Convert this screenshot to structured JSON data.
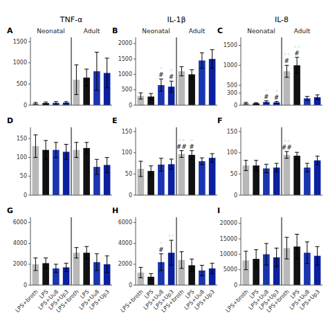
{
  "chart_data": [
    {
      "type": "bar",
      "label": "A",
      "title": "TNF-α",
      "categories": [
        null,
        null,
        null,
        null,
        null,
        null,
        null,
        null
      ],
      "values": [
        45,
        50,
        55,
        60,
        600,
        650,
        800,
        760
      ],
      "errors": [
        20,
        25,
        30,
        25,
        350,
        200,
        450,
        350
      ],
      "colors": [
        "#b8b8b8",
        "#111111",
        "#1a35b0",
        "#0a20a0",
        "#b8b8b8",
        "#111111",
        "#1a35b0",
        "#0a20a0"
      ],
      "ylim": [
        0,
        1600
      ],
      "yticks": [
        0,
        500,
        1000,
        1500
      ],
      "tick_labels": "y",
      "annotations": [
        {
          "text": "Neonatal"
        },
        {
          "text": "Adult"
        }
      ]
    },
    {
      "type": "bar",
      "label": "B",
      "title": "IL-1β",
      "categories": [
        null,
        null,
        null,
        null,
        null,
        null,
        null,
        null
      ],
      "values": [
        300,
        280,
        650,
        600,
        1100,
        1000,
        1450,
        1500
      ],
      "errors": [
        100,
        100,
        200,
        180,
        150,
        150,
        250,
        300
      ],
      "colors": [
        "#b8b8b8",
        "#111111",
        "#1a35b0",
        "#0a20a0",
        "#b8b8b8",
        "#111111",
        "#1a35b0",
        "#0a20a0"
      ],
      "ylim": [
        0,
        2200
      ],
      "yticks": [
        0,
        500,
        1000,
        1500,
        2000
      ],
      "tick_labels": "y",
      "annotations": [
        {
          "text": "Neonatal"
        },
        {
          "text": "Adult"
        },
        {
          "text": "#",
          "category": 2,
          "color": "black"
        },
        {
          "text": "◦",
          "category": 2,
          "color": "gray"
        },
        {
          "text": "#",
          "category": 3,
          "color": "black"
        },
        {
          "text": "◦",
          "category": 3,
          "color": "gray"
        }
      ]
    },
    {
      "type": "bar",
      "label": "C",
      "title": "IL-8",
      "categories": [
        null,
        null,
        null,
        null,
        null,
        null,
        null,
        null
      ],
      "values": [
        50,
        45,
        80,
        70,
        850,
        1000,
        170,
        200
      ],
      "errors": [
        20,
        15,
        30,
        25,
        150,
        200,
        50,
        60
      ],
      "colors": [
        "#b8b8b8",
        "#111111",
        "#1a35b0",
        "#0a20a0",
        "#b8b8b8",
        "#111111",
        "#1a35b0",
        "#0a20a0"
      ],
      "ylim": [
        0,
        1700
      ],
      "yticks": [
        0,
        300,
        500,
        1000,
        1500
      ],
      "tick_labels": "y",
      "annotations": [
        {
          "text": "Neonatal"
        },
        {
          "text": "Adult"
        },
        {
          "text": "#",
          "category": 2,
          "color": "black"
        },
        {
          "text": "◦",
          "category": 2,
          "color": "gray"
        },
        {
          "text": "#",
          "category": 3,
          "color": "black"
        },
        {
          "text": "◦",
          "category": 3,
          "color": "gray"
        },
        {
          "text": "#",
          "category": 4,
          "color": "black"
        },
        {
          "text": "◦◦",
          "category": 4,
          "color": "gray"
        },
        {
          "text": "#",
          "category": 5,
          "color": "black"
        },
        {
          "text": "◦◦",
          "category": 5,
          "color": "gray"
        }
      ]
    },
    {
      "type": "bar",
      "label": "D",
      "categories": [
        null,
        null,
        null,
        null,
        null,
        null,
        null,
        null
      ],
      "values": [
        130,
        120,
        120,
        115,
        120,
        125,
        75,
        80
      ],
      "errors": [
        30,
        25,
        20,
        20,
        20,
        15,
        20,
        20
      ],
      "colors": [
        "#b8b8b8",
        "#111111",
        "#1a35b0",
        "#0a20a0",
        "#b8b8b8",
        "#111111",
        "#1a35b0",
        "#0a20a0"
      ],
      "ylim": [
        0,
        180
      ],
      "yticks": [
        0,
        50,
        100,
        150
      ],
      "tick_labels": "y"
    },
    {
      "type": "bar",
      "label": "E",
      "categories": [
        null,
        null,
        null,
        null,
        null,
        null,
        null,
        null
      ],
      "values": [
        62,
        57,
        72,
        73,
        97,
        95,
        80,
        88
      ],
      "errors": [
        18,
        12,
        15,
        12,
        8,
        10,
        8,
        10
      ],
      "colors": [
        "#b8b8b8",
        "#111111",
        "#1a35b0",
        "#0a20a0",
        "#b8b8b8",
        "#111111",
        "#1a35b0",
        "#0a20a0"
      ],
      "ylim": [
        0,
        160
      ],
      "yticks": [
        0,
        50,
        100,
        150
      ],
      "tick_labels": "y",
      "annotations": [
        {
          "text": "##",
          "category": 4,
          "color": "black"
        },
        {
          "text": "◦◦",
          "category": 4,
          "color": "gray"
        },
        {
          "text": "#",
          "category": 5,
          "color": "black"
        },
        {
          "text": "◦",
          "category": 5,
          "color": "gray"
        }
      ]
    },
    {
      "type": "bar",
      "label": "F",
      "categories": [
        null,
        null,
        null,
        null,
        null,
        null,
        null,
        null
      ],
      "values": [
        70,
        70,
        63,
        65,
        95,
        93,
        65,
        82
      ],
      "errors": [
        12,
        12,
        10,
        10,
        8,
        8,
        10,
        10
      ],
      "colors": [
        "#b8b8b8",
        "#111111",
        "#1a35b0",
        "#0a20a0",
        "#b8b8b8",
        "#111111",
        "#1a35b0",
        "#0a20a0"
      ],
      "ylim": [
        0,
        160
      ],
      "yticks": [
        0,
        50,
        100,
        150
      ],
      "tick_labels": "y",
      "annotations": [
        {
          "text": "##",
          "category": 4,
          "color": "black"
        },
        {
          "text": "◦◦",
          "category": 4,
          "color": "gray"
        }
      ]
    },
    {
      "type": "bar",
      "label": "G",
      "categories": [
        "LPS+broth",
        "LPS",
        "LPS+Uu8",
        "LPS+Up3",
        "LPS+broth",
        "LPS",
        "LPS+Uu8",
        "LPS+Up3"
      ],
      "values": [
        2000,
        2100,
        1600,
        1700,
        3100,
        3100,
        2200,
        2000
      ],
      "errors": [
        600,
        500,
        400,
        400,
        500,
        600,
        800,
        800
      ],
      "colors": [
        "#b8b8b8",
        "#111111",
        "#1a35b0",
        "#0a20a0",
        "#b8b8b8",
        "#111111",
        "#1a35b0",
        "#0a20a0"
      ],
      "ylim": [
        0,
        6500
      ],
      "yticks": [
        0,
        2000,
        4000,
        6000
      ]
    },
    {
      "type": "bar",
      "label": "H",
      "categories": [
        "LPS+broth",
        "LPS",
        "LPS+Uu8",
        "LPS+Up3",
        "LPS+broth",
        "LPS",
        "LPS+Uu8",
        "LPS+Up3"
      ],
      "values": [
        1200,
        800,
        2200,
        3100,
        2400,
        1900,
        1400,
        1600
      ],
      "errors": [
        500,
        300,
        800,
        1200,
        800,
        600,
        500,
        500
      ],
      "colors": [
        "#b8b8b8",
        "#111111",
        "#1a35b0",
        "#0a20a0",
        "#b8b8b8",
        "#111111",
        "#1a35b0",
        "#0a20a0"
      ],
      "ylim": [
        0,
        6500
      ],
      "yticks": [
        0,
        2000,
        4000,
        6000
      ],
      "annotations": [
        {
          "text": "#",
          "category": 2,
          "color": "black"
        },
        {
          "text": "◦",
          "category": 2,
          "color": "gray"
        },
        {
          "text": "◦◦",
          "category": 3,
          "color": "gray"
        }
      ]
    },
    {
      "type": "bar",
      "label": "I",
      "categories": [
        "LPS+broth",
        "LPS",
        "LPS+Uu8",
        "LPS+Up3",
        "LPS+broth",
        "LPS",
        "LPS+Uu8",
        "LPS+Up3"
      ],
      "values": [
        8000,
        8500,
        10000,
        9000,
        12000,
        12500,
        10500,
        9500
      ],
      "errors": [
        3000,
        3000,
        3500,
        3000,
        3500,
        4000,
        3500,
        3000
      ],
      "colors": [
        "#b8b8b8",
        "#111111",
        "#1a35b0",
        "#0a20a0",
        "#b8b8b8",
        "#111111",
        "#1a35b0",
        "#0a20a0"
      ],
      "ylim": [
        0,
        22000
      ],
      "yticks": [
        0,
        5000,
        10000,
        15000,
        20000
      ]
    }
  ]
}
